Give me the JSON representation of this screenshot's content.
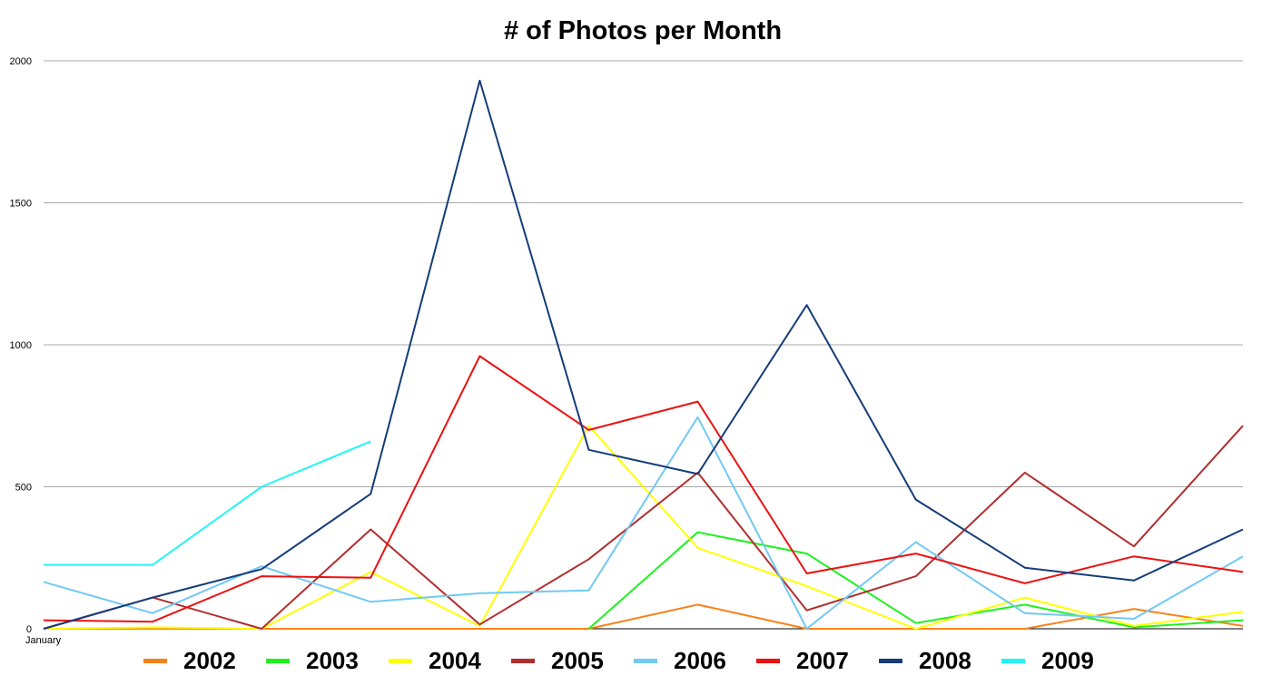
{
  "chart_data": {
    "type": "line",
    "title": "# of Photos per Month",
    "xlabel": "",
    "ylabel": "",
    "ylim": [
      0,
      2000
    ],
    "yticks": [
      "0",
      "500",
      "1000",
      "1500",
      "2000"
    ],
    "xtick_labels": [
      "January"
    ],
    "grid": true,
    "legend_position": "bottom",
    "categories": [
      "January",
      "",
      "",
      "",
      "",
      "",
      "",
      "",
      "",
      "",
      "",
      ""
    ],
    "series": [
      {
        "name": "2002",
        "color": "#f7821b",
        "values": [
          0,
          0,
          0,
          0,
          0,
          0,
          85,
          0,
          0,
          0,
          70,
          10
        ]
      },
      {
        "name": "2003",
        "color": "#1ef21e",
        "values": [
          null,
          null,
          null,
          null,
          null,
          0,
          340,
          265,
          20,
          85,
          5,
          30
        ]
      },
      {
        "name": "2004",
        "color": "#ffff00",
        "values": [
          0,
          5,
          0,
          200,
          10,
          715,
          285,
          150,
          0,
          110,
          10,
          60
        ]
      },
      {
        "name": "2005",
        "color": "#b12e2e",
        "values": [
          0,
          110,
          0,
          350,
          15,
          245,
          550,
          65,
          185,
          550,
          290,
          715
        ]
      },
      {
        "name": "2006",
        "color": "#72c9f3",
        "values": [
          165,
          55,
          220,
          95,
          125,
          135,
          745,
          0,
          305,
          55,
          35,
          255
        ]
      },
      {
        "name": "2007",
        "color": "#ec1111",
        "values": [
          30,
          25,
          185,
          180,
          960,
          700,
          800,
          195,
          265,
          160,
          255,
          200
        ]
      },
      {
        "name": "2008",
        "color": "#153c7a",
        "values": [
          0,
          110,
          210,
          475,
          1930,
          630,
          545,
          1140,
          455,
          215,
          170,
          350
        ]
      },
      {
        "name": "2009",
        "color": "#22f5f5",
        "values": [
          225,
          225,
          500,
          660,
          null,
          null,
          null,
          null,
          null,
          null,
          null,
          null
        ]
      }
    ]
  }
}
